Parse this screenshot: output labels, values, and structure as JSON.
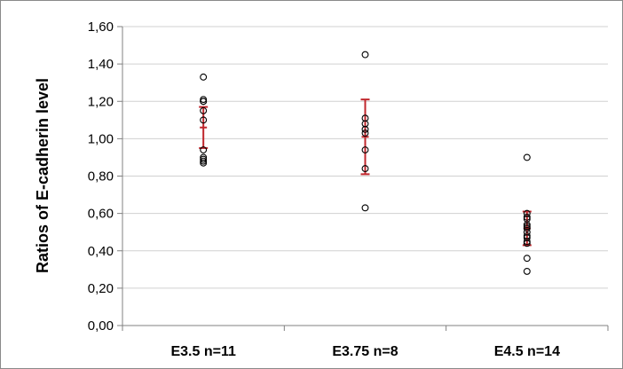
{
  "chart_data": {
    "type": "scatter",
    "title": "",
    "xlabel": "",
    "ylabel": "Ratios of E-cadherin level",
    "ylim": [
      0,
      1.6
    ],
    "yticks": [
      "0,00",
      "0,20",
      "0,40",
      "0,60",
      "0,80",
      "1,00",
      "1,20",
      "1,40",
      "1,60"
    ],
    "grid": true,
    "legend": "none",
    "categories": [
      "E3.5 n=11",
      "E3.75 n=8",
      "E4.5 n=14"
    ],
    "series": [
      {
        "values": [
          [
            0.87,
            0.88,
            0.89,
            0.9,
            0.94,
            1.1,
            1.15,
            1.2,
            1.2,
            1.21,
            1.33
          ],
          [
            0.63,
            0.84,
            0.94,
            1.03,
            1.05,
            1.08,
            1.11,
            1.45
          ],
          [
            0.29,
            0.36,
            0.44,
            0.45,
            0.47,
            0.48,
            0.5,
            0.52,
            0.53,
            0.54,
            0.57,
            0.58,
            0.6,
            0.9
          ]
        ]
      }
    ],
    "error_bars": [
      {
        "center": 1.06,
        "low": 0.95,
        "high": 1.17
      },
      {
        "center": 1.01,
        "low": 0.81,
        "high": 1.21
      },
      {
        "center": 0.52,
        "low": 0.43,
        "high": 0.61
      }
    ],
    "colors": {
      "points": "#000000",
      "error_bar": "#c0272d",
      "grid": "#d0d0d0",
      "axis": "#808080"
    }
  }
}
